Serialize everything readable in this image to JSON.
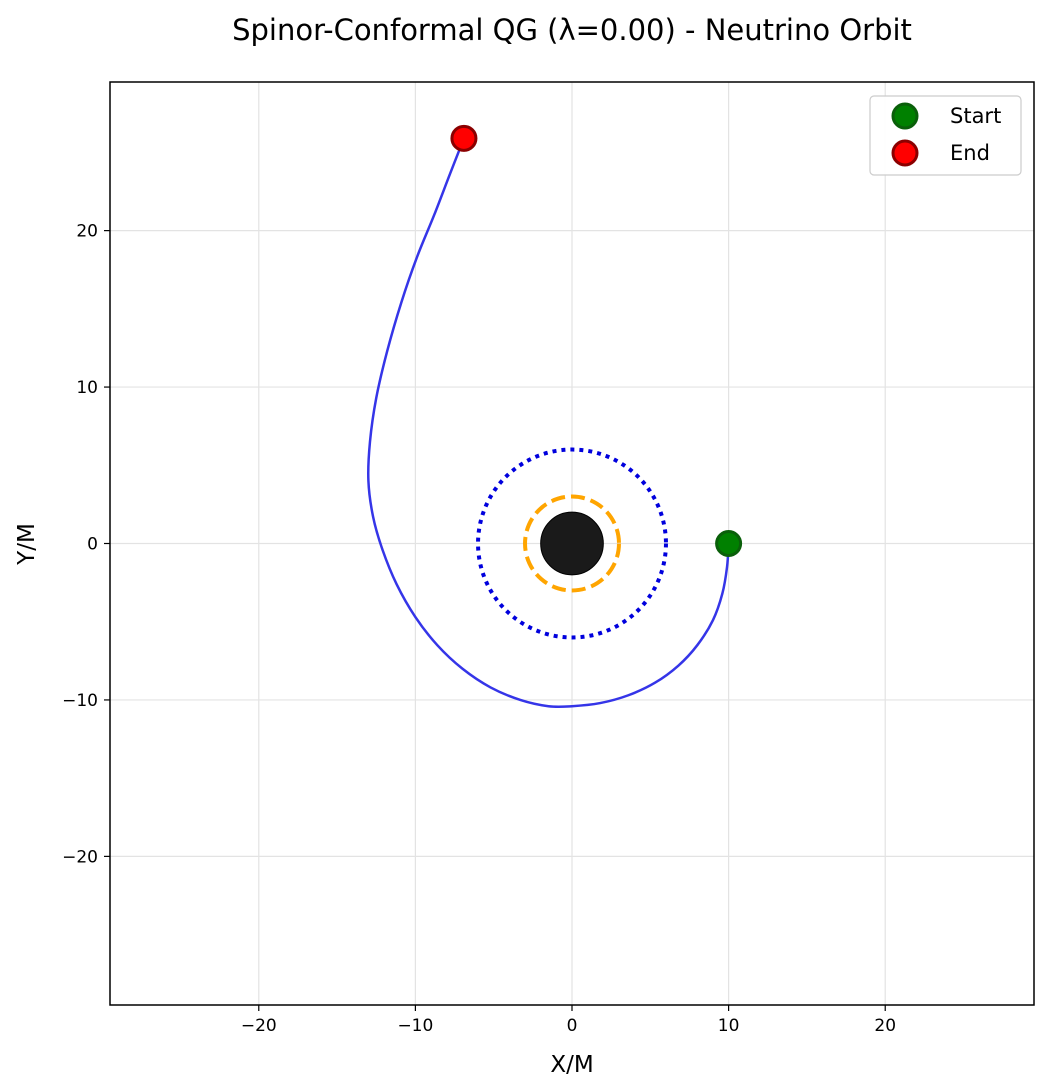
{
  "chart_data": {
    "type": "line",
    "title": "Spinor-Conformal QG (λ=0.00) - Neutrino Orbit",
    "xlabel": "X/M",
    "ylabel": "Y/M",
    "xlim": [
      -29.5,
      29.5
    ],
    "ylim": [
      -29.5,
      29.5
    ],
    "xticks": [
      -20,
      -10,
      0,
      10,
      20
    ],
    "yticks": [
      -20,
      -10,
      0,
      10,
      20
    ],
    "xtick_labels": [
      "−20",
      "−10",
      "0",
      "10",
      "20"
    ],
    "ytick_labels": [
      "−20",
      "−10",
      "0",
      "10",
      "20"
    ],
    "grid": true,
    "legend_position": "top-right",
    "black_hole": {
      "center": [
        0,
        0
      ],
      "radius": 2.0,
      "color": "#1a1a1a"
    },
    "photon_sphere": {
      "radius": 3.0,
      "color": "#ffa500",
      "style": "dashed"
    },
    "isco": {
      "radius": 6.0,
      "color": "#0000dd",
      "style": "dotted"
    },
    "orbit": {
      "color": "#3535e8",
      "x": [
        10.0,
        9.9,
        9.6,
        9.0,
        8.0,
        6.8,
        5.3,
        3.6,
        1.8,
        0.0,
        -1.5,
        -3.3,
        -5.2,
        -7.0,
        -8.6,
        -10.0,
        -11.2,
        -12.1,
        -12.7,
        -13.0,
        -12.9,
        -12.5,
        -11.8,
        -10.9,
        -9.9,
        -8.8,
        -7.8,
        -6.9
      ],
      "y": [
        0.0,
        -1.5,
        -3.2,
        -4.9,
        -6.5,
        -7.8,
        -8.9,
        -9.7,
        -10.2,
        -10.4,
        -10.4,
        -10.0,
        -9.2,
        -8.0,
        -6.5,
        -4.7,
        -2.6,
        -0.4,
        1.7,
        4.0,
        6.5,
        9.3,
        12.3,
        15.4,
        18.3,
        21.0,
        23.6,
        25.9
      ]
    },
    "markers": [
      {
        "name": "Start",
        "x": 10.0,
        "y": 0.0,
        "fill": "#008000",
        "edge": "#0a5f0a"
      },
      {
        "name": "End",
        "x": -6.9,
        "y": 25.9,
        "fill": "#ff0000",
        "edge": "#8b0000"
      }
    ]
  }
}
